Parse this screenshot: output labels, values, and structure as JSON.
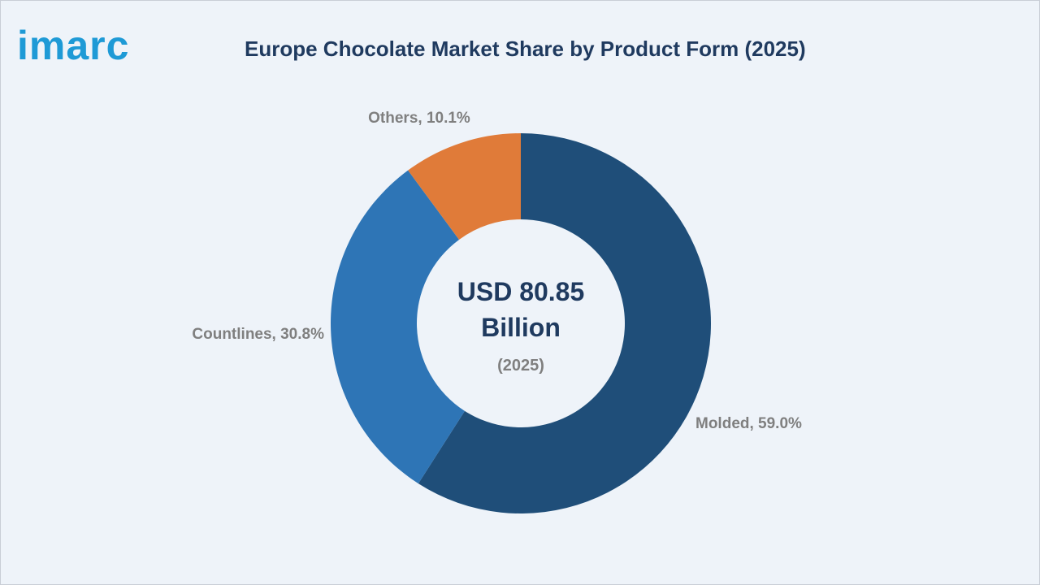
{
  "logo": "imarc",
  "chart_data": {
    "type": "donut",
    "title": "Europe Chocolate Market Share by Product Form (2025)",
    "values": [
      59.0,
      30.8,
      10.1
    ],
    "value_labels": [
      "Molded, 59.0%",
      "Countlines, 30.8%",
      "Others, 10.1%"
    ],
    "colors": [
      "#1f4e79",
      "#2e75b6",
      "#e07b39"
    ],
    "center_label": "USD 80.85 Billion",
    "center_sublabel": "(2025)"
  }
}
